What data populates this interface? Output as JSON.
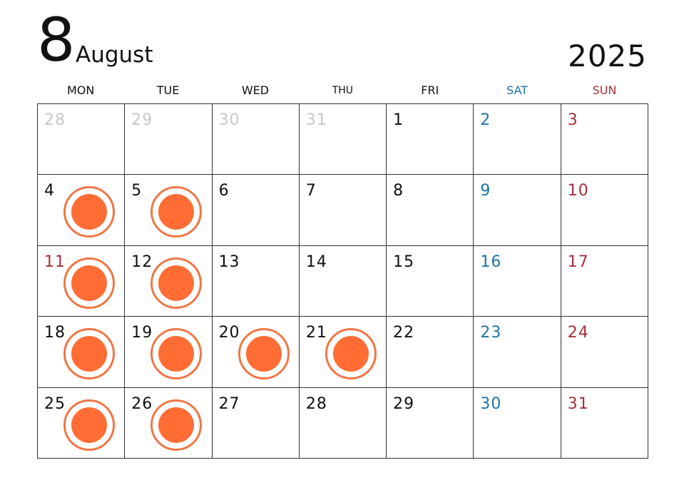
{
  "header": {
    "month_number": "8",
    "month_name": "August",
    "year": "2025"
  },
  "weekdays": [
    {
      "label": "MON",
      "color": "#111111"
    },
    {
      "label": "TUE",
      "color": "#111111"
    },
    {
      "label": "WED",
      "color": "#111111"
    },
    {
      "label": "THU",
      "color": "#111111"
    },
    {
      "label": "FRI",
      "color": "#111111"
    },
    {
      "label": "SAT",
      "color": "#1f73a8"
    },
    {
      "label": "SUN",
      "color": "#a82f3a"
    }
  ],
  "colors": {
    "outside_month": "#c8c8c8",
    "weekday_text": "#111111",
    "saturday": "#1f73a8",
    "sunday": "#a82f3a",
    "mark_ring": "#ee7746",
    "mark_fill": "#ff6d35",
    "grid_line": "#333333"
  },
  "weeks": [
    [
      {
        "day": "28",
        "type": "outside",
        "marked": false
      },
      {
        "day": "29",
        "type": "outside",
        "marked": false
      },
      {
        "day": "30",
        "type": "outside",
        "marked": false
      },
      {
        "day": "31",
        "type": "outside",
        "marked": false
      },
      {
        "day": "1",
        "type": "weekday",
        "marked": false
      },
      {
        "day": "2",
        "type": "saturday",
        "marked": false
      },
      {
        "day": "3",
        "type": "sunday",
        "marked": false
      }
    ],
    [
      {
        "day": "4",
        "type": "weekday",
        "marked": true
      },
      {
        "day": "5",
        "type": "weekday",
        "marked": true
      },
      {
        "day": "6",
        "type": "weekday",
        "marked": false
      },
      {
        "day": "7",
        "type": "weekday",
        "marked": false
      },
      {
        "day": "8",
        "type": "weekday",
        "marked": false
      },
      {
        "day": "9",
        "type": "saturday",
        "marked": false
      },
      {
        "day": "10",
        "type": "sunday",
        "marked": false
      }
    ],
    [
      {
        "day": "11",
        "type": "sunday",
        "marked": true
      },
      {
        "day": "12",
        "type": "weekday",
        "marked": true
      },
      {
        "day": "13",
        "type": "weekday",
        "marked": false
      },
      {
        "day": "14",
        "type": "weekday",
        "marked": false
      },
      {
        "day": "15",
        "type": "weekday",
        "marked": false
      },
      {
        "day": "16",
        "type": "saturday",
        "marked": false
      },
      {
        "day": "17",
        "type": "sunday",
        "marked": false
      }
    ],
    [
      {
        "day": "18",
        "type": "weekday",
        "marked": true
      },
      {
        "day": "19",
        "type": "weekday",
        "marked": true
      },
      {
        "day": "20",
        "type": "weekday",
        "marked": true
      },
      {
        "day": "21",
        "type": "weekday",
        "marked": true
      },
      {
        "day": "22",
        "type": "weekday",
        "marked": false
      },
      {
        "day": "23",
        "type": "saturday",
        "marked": false
      },
      {
        "day": "24",
        "type": "sunday",
        "marked": false
      }
    ],
    [
      {
        "day": "25",
        "type": "weekday",
        "marked": true
      },
      {
        "day": "26",
        "type": "weekday",
        "marked": true
      },
      {
        "day": "27",
        "type": "weekday",
        "marked": false
      },
      {
        "day": "28",
        "type": "weekday",
        "marked": false
      },
      {
        "day": "29",
        "type": "weekday",
        "marked": false
      },
      {
        "day": "30",
        "type": "saturday",
        "marked": false
      },
      {
        "day": "31",
        "type": "sunday",
        "marked": false
      }
    ]
  ]
}
